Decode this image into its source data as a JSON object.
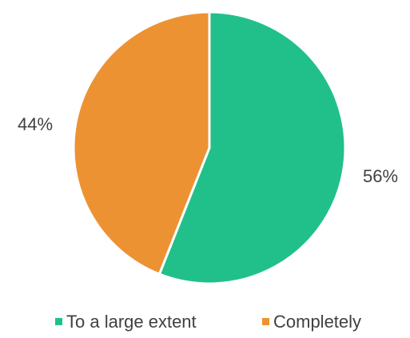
{
  "chart_data": {
    "type": "pie",
    "title": "",
    "categories": [
      "To a large extent",
      "Completely"
    ],
    "values": [
      56,
      44
    ],
    "labels": [
      "56%",
      "44%"
    ],
    "colors": [
      "#21C08B",
      "#ED9232"
    ],
    "start_angle": "12 o'clock",
    "direction": "clockwise",
    "slice_border_color": "#FFFFFF",
    "legend": {
      "position": "bottom",
      "entries": [
        "To a large extent",
        "Completely"
      ]
    }
  }
}
